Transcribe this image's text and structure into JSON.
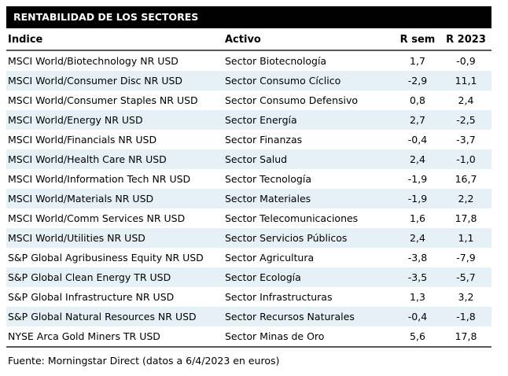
{
  "title": "RENTABILIDAD DE LOS SECTORES",
  "footer": "Fuente: Morningstar Direct (datos a 6/4/2023 en euros)",
  "colors": {
    "title_bg": "#000000",
    "title_text": "#ffffff",
    "stripe": "#e6f1f7",
    "rule": "#595959",
    "body_text": "#000000"
  },
  "chart_data": {
    "type": "table",
    "title": "RENTABILIDAD DE LOS SECTORES",
    "columns": [
      "Índice",
      "Activo",
      "R sem",
      "R 2023"
    ],
    "rows": [
      [
        "MSCI World/Biotechnology NR USD",
        "Sector Biotecnología",
        "1,7",
        "-0,9"
      ],
      [
        "MSCI World/Consumer Disc NR USD",
        "Sector Consumo Cíclico",
        "-2,9",
        "11,1"
      ],
      [
        "MSCI World/Consumer Staples NR USD",
        "Sector Consumo Defensivo",
        "0,8",
        "2,4"
      ],
      [
        "MSCI World/Energy NR USD",
        "Sector Energía",
        "2,7",
        "-2,5"
      ],
      [
        "MSCI World/Financials NR USD",
        "Sector Finanzas",
        "-0,4",
        "-3,7"
      ],
      [
        "MSCI World/Health Care NR USD",
        "Sector Salud",
        "2,4",
        "-1,0"
      ],
      [
        "MSCI World/Information Tech NR USD",
        "Sector Tecnología",
        "-1,9",
        "16,7"
      ],
      [
        "MSCI World/Materials NR USD",
        "Sector Materiales",
        "-1,9",
        "2,2"
      ],
      [
        "MSCI World/Comm Services NR USD",
        "Sector Telecomunicaciones",
        "1,6",
        "17,8"
      ],
      [
        "MSCI World/Utilities NR USD",
        "Sector Servicios Públicos",
        "2,4",
        "1,1"
      ],
      [
        "S&P Global Agribusiness Equity NR USD",
        "Sector Agricultura",
        "-3,8",
        "-7,9"
      ],
      [
        "S&P Global Clean Energy TR USD",
        "Sector Ecología",
        "-3,5",
        "-5,7"
      ],
      [
        "S&P Global Infrastructure NR USD",
        "Sector Infrastructuras",
        "1,3",
        "3,2"
      ],
      [
        "S&P Global Natural Resources NR USD",
        "Sector Recursos Naturales",
        "-0,4",
        "-1,8"
      ],
      [
        "NYSE Arca Gold Miners TR USD",
        "Sector Minas de Oro",
        "5,6",
        "17,8"
      ]
    ],
    "source": "Fuente: Morningstar Direct (datos a 6/4/2023 en euros)"
  }
}
